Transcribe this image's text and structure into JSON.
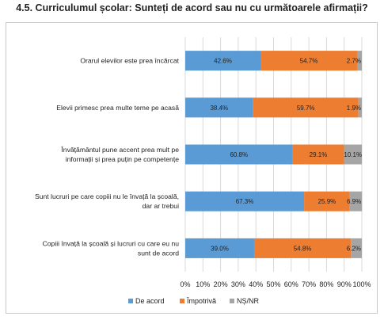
{
  "title": "4.5. Curriculumul școlar: Sunteți de acord sau nu cu următoarele afirmații?",
  "chart_data": {
    "type": "bar",
    "orientation": "horizontal",
    "stacked": true,
    "percent_scale": true,
    "categories": [
      [
        "Orarul elevilor este prea încărcat"
      ],
      [
        "Elevii primesc prea multe teme pe acasă"
      ],
      [
        "Învățământul pune accent prea mult pe",
        "informații și prea puțin pe competențe"
      ],
      [
        "Sunt lucruri pe care copiii nu le învață la școală,",
        "dar ar trebui"
      ],
      [
        "Copiii învață la școală și lucruri cu care eu nu",
        "sunt de acord"
      ]
    ],
    "series": [
      {
        "name": "De acord",
        "color": "#5b9bd5",
        "values": [
          42.6,
          38.4,
          60.8,
          67.3,
          39.0
        ],
        "labels": [
          "42.6%",
          "38.4%",
          "60.8%",
          "67.3%",
          "39.0%"
        ]
      },
      {
        "name": "Împotrivă",
        "color": "#ed7d31",
        "values": [
          54.7,
          59.7,
          29.1,
          25.9,
          54.8
        ],
        "labels": [
          "54.7%",
          "59.7%",
          "29.1%",
          "25.9%",
          "54.8%"
        ]
      },
      {
        "name": "NȘ/NR",
        "color": "#a5a5a5",
        "values": [
          2.7,
          1.9,
          10.1,
          6.9,
          6.2
        ],
        "labels": [
          "2.7%",
          "1.9%",
          "10.1%",
          "6.9%",
          "6.2%"
        ]
      }
    ],
    "x_ticks": [
      "0%",
      "10%",
      "20%",
      "30%",
      "40%",
      "50%",
      "60%",
      "70%",
      "80%",
      "90%",
      "100%"
    ],
    "xlim": [
      0,
      100
    ],
    "grid": true,
    "legend": "bottom"
  }
}
